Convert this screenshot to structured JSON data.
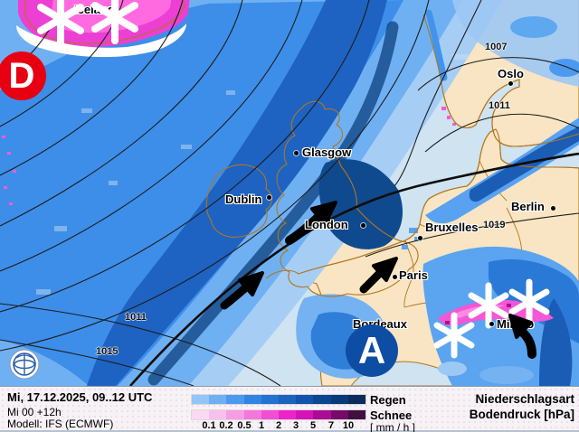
{
  "map": {
    "low_marker": {
      "label": "D",
      "color": "#e60012"
    },
    "high_marker": {
      "label": "A",
      "color": "#0e4da4"
    },
    "region_labels": [
      {
        "text": "Iceland"
      }
    ],
    "cities": [
      {
        "name": "Glasgow"
      },
      {
        "name": "Dublin"
      },
      {
        "name": "London"
      },
      {
        "name": "Bruxelles"
      },
      {
        "name": "Paris"
      },
      {
        "name": "Berlin"
      },
      {
        "name": "Oslo"
      },
      {
        "name": "Milano"
      },
      {
        "name": "Bordeaux"
      }
    ],
    "isobar_labels": [
      {
        "value": "1007"
      },
      {
        "value": "1011"
      },
      {
        "value": "1019"
      },
      {
        "value": "1011"
      },
      {
        "value": "1015"
      }
    ],
    "colors": {
      "sea": "#cfe3f1",
      "land": "#f9e5c3",
      "coastline": "#b0761e",
      "isobar": "#1c1c1c"
    }
  },
  "legend": {
    "datetime": "Mi, 17.12.2025, 09..12 UTC",
    "run": "Mi 00 +12h",
    "model": "Modell: IFS (ECMWF)",
    "rain_label": "Regen",
    "snow_label": "Schnee",
    "unit_label": "[ mm / h ]",
    "type_label": "Niederschlagsart",
    "pressure_label": "Bodendruck [hPa]",
    "ticks": [
      "0.1",
      "0.2",
      "0.5",
      "1",
      "2",
      "3",
      "5",
      "7",
      "10"
    ],
    "rain_colors": [
      "#93c5fa",
      "#6fb0f5",
      "#4c9af0",
      "#3085e2",
      "#2373d1",
      "#1a64c0",
      "#1254ab",
      "#0c4692",
      "#0a3a79",
      "#0b2d5c"
    ],
    "snow_colors": [
      "#fbd9f3",
      "#f9c0ec",
      "#f79ce5",
      "#f477dc",
      "#f24ed3",
      "#ee23c9",
      "#d513b6",
      "#ab0c93",
      "#770968",
      "#401040"
    ]
  }
}
